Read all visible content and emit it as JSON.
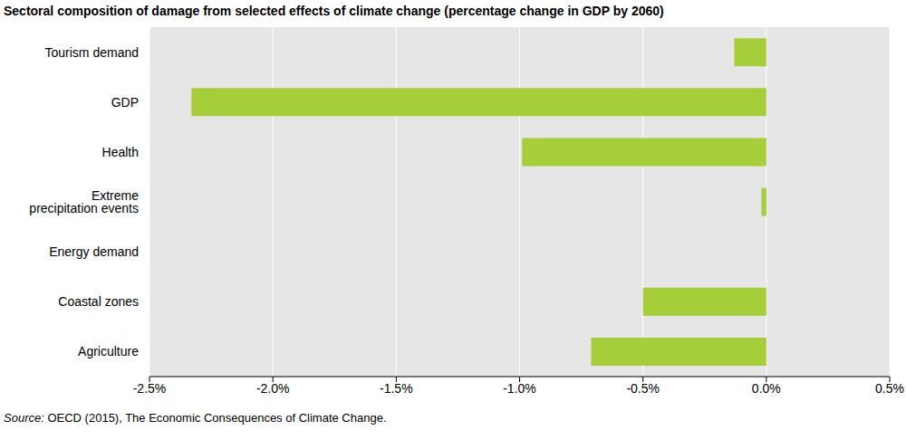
{
  "chart_data": {
    "type": "bar",
    "orientation": "horizontal",
    "title": "Sectoral composition of damage from selected effects of climate change (percentage change in GDP by 2060)",
    "categories": [
      "Tourism demand",
      "GDP",
      "Health",
      "Extreme precipitation events",
      "Energy demand",
      "Coastal zones",
      "Agriculture"
    ],
    "values": [
      -0.13,
      -2.33,
      -0.99,
      -0.02,
      0,
      -0.5,
      -0.71
    ],
    "color": "#a6ce39",
    "xlim": [
      -2.5,
      0.5
    ],
    "xticks": [
      {
        "value": -2.5,
        "label": "-2.5%"
      },
      {
        "value": -2,
        "label": "-2.0%"
      },
      {
        "value": -1.5,
        "label": "-1.5%"
      },
      {
        "value": -1,
        "label": "-1.0%"
      },
      {
        "value": -0.5,
        "label": "-0.5%"
      },
      {
        "value": 0,
        "label": "0.0%"
      },
      {
        "value": 0.5,
        "label": "0.5%"
      }
    ],
    "grid": true,
    "source_label": "Source:",
    "source": "OECD (2015), The Economic Consequences of Climate Change."
  }
}
